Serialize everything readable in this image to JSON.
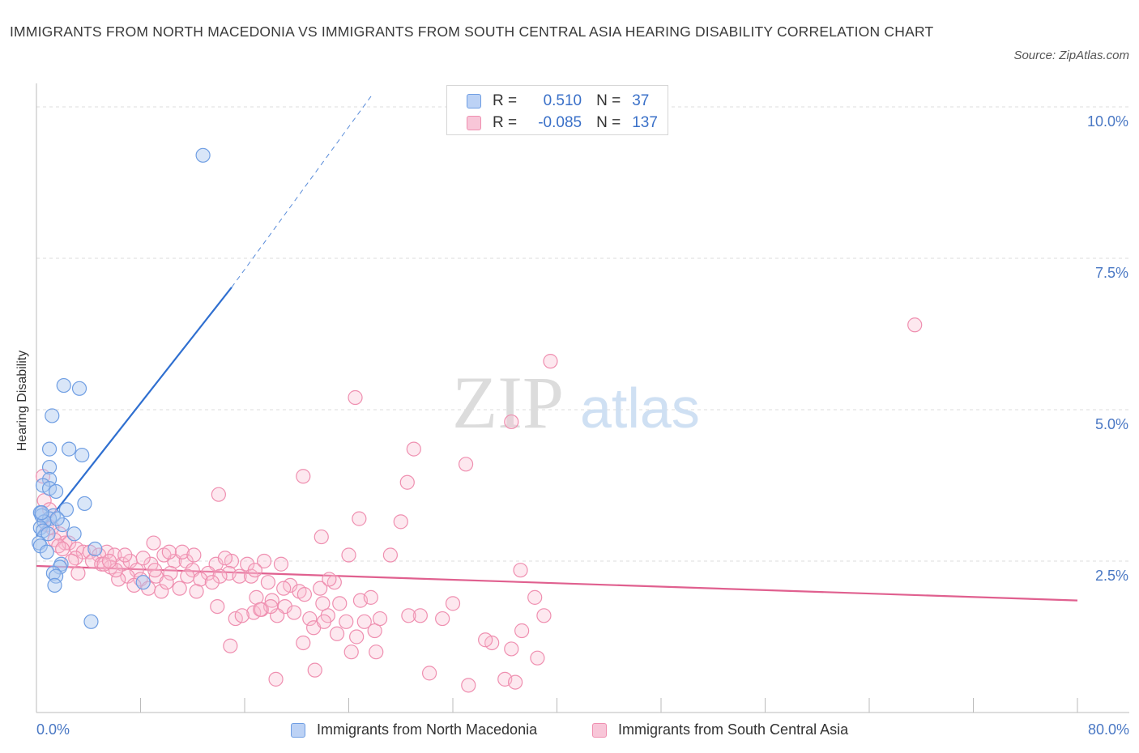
{
  "title": "IMMIGRANTS FROM NORTH MACEDONIA VS IMMIGRANTS FROM SOUTH CENTRAL ASIA HEARING DISABILITY CORRELATION CHART",
  "source": "Source: ZipAtlas.com",
  "watermark": {
    "zip": "ZIP",
    "atlas": "atlas"
  },
  "stats": {
    "blue": {
      "r_label": "R =",
      "r": "0.510",
      "n_label": "N =",
      "n": "37"
    },
    "pink": {
      "r_label": "R =",
      "r": "-0.085",
      "n_label": "N =",
      "n": "137"
    }
  },
  "chart_data": {
    "type": "scatter",
    "xlabel": "",
    "ylabel": "Hearing Disability",
    "xlim": [
      0,
      80
    ],
    "ylim": [
      0,
      10.2
    ],
    "x_tick_labels": [
      "0.0%",
      "80.0%"
    ],
    "y_tick_labels": [
      "2.5%",
      "5.0%",
      "7.5%",
      "10.0%"
    ],
    "y_ticks": [
      2.5,
      5.0,
      7.5,
      10.0
    ],
    "grid": true,
    "colors": {
      "blue": "#6f9ee3",
      "blue_line": "#2f6fd0",
      "pink": "#ef8fb0",
      "pink_line": "#e0608f",
      "axis_text": "#4a78c4"
    },
    "series": [
      {
        "name": "Immigrants from North Macedonia",
        "color": "blue",
        "points": [
          [
            12.8,
            9.2
          ],
          [
            2.1,
            5.4
          ],
          [
            3.3,
            5.35
          ],
          [
            1.2,
            4.9
          ],
          [
            1.0,
            4.35
          ],
          [
            2.5,
            4.35
          ],
          [
            3.5,
            4.25
          ],
          [
            1.0,
            4.05
          ],
          [
            1.0,
            3.85
          ],
          [
            0.5,
            3.75
          ],
          [
            1.0,
            3.7
          ],
          [
            1.5,
            3.65
          ],
          [
            3.7,
            3.45
          ],
          [
            0.3,
            3.3
          ],
          [
            2.3,
            3.35
          ],
          [
            0.4,
            3.25
          ],
          [
            1.3,
            3.25
          ],
          [
            1.0,
            3.2
          ],
          [
            0.6,
            3.15
          ],
          [
            2.0,
            3.1
          ],
          [
            0.3,
            3.05
          ],
          [
            0.5,
            3.0
          ],
          [
            2.9,
            2.95
          ],
          [
            0.2,
            2.8
          ],
          [
            0.3,
            2.75
          ],
          [
            4.5,
            2.7
          ],
          [
            0.8,
            2.65
          ],
          [
            1.9,
            2.45
          ],
          [
            1.8,
            2.4
          ],
          [
            1.3,
            2.3
          ],
          [
            1.5,
            2.25
          ],
          [
            8.2,
            2.15
          ],
          [
            1.4,
            2.1
          ],
          [
            4.2,
            1.5
          ],
          [
            0.4,
            3.3
          ],
          [
            1.6,
            3.2
          ],
          [
            0.9,
            2.95
          ]
        ]
      },
      {
        "name": "Immigrants from South Central Asia",
        "color": "pink",
        "points": [
          [
            67.5,
            6.4
          ],
          [
            39.5,
            5.8
          ],
          [
            24.5,
            5.2
          ],
          [
            36.5,
            4.8
          ],
          [
            29.0,
            4.35
          ],
          [
            33.0,
            4.1
          ],
          [
            20.5,
            3.9
          ],
          [
            28.5,
            3.8
          ],
          [
            14.0,
            3.6
          ],
          [
            24.8,
            3.2
          ],
          [
            28.0,
            3.15
          ],
          [
            21.9,
            2.9
          ],
          [
            0.5,
            3.9
          ],
          [
            0.6,
            3.5
          ],
          [
            1.0,
            3.35
          ],
          [
            0.8,
            3.1
          ],
          [
            1.2,
            3.05
          ],
          [
            1.8,
            2.95
          ],
          [
            1.4,
            2.85
          ],
          [
            2.2,
            2.8
          ],
          [
            2.5,
            2.8
          ],
          [
            1.7,
            2.75
          ],
          [
            3.1,
            2.7
          ],
          [
            2.0,
            2.7
          ],
          [
            3.6,
            2.65
          ],
          [
            4.1,
            2.65
          ],
          [
            5.4,
            2.65
          ],
          [
            6.0,
            2.6
          ],
          [
            4.8,
            2.6
          ],
          [
            3.0,
            2.55
          ],
          [
            4.3,
            2.5
          ],
          [
            2.7,
            2.5
          ],
          [
            5.0,
            2.45
          ],
          [
            6.6,
            2.45
          ],
          [
            7.2,
            2.5
          ],
          [
            5.7,
            2.4
          ],
          [
            7.7,
            2.35
          ],
          [
            8.8,
            2.45
          ],
          [
            8.2,
            2.55
          ],
          [
            10.6,
            2.5
          ],
          [
            11.5,
            2.5
          ],
          [
            9.8,
            2.6
          ],
          [
            11.2,
            2.65
          ],
          [
            12.0,
            2.35
          ],
          [
            13.8,
            2.45
          ],
          [
            15.0,
            2.5
          ],
          [
            13.2,
            2.3
          ],
          [
            12.6,
            2.2
          ],
          [
            10.3,
            2.3
          ],
          [
            9.2,
            2.25
          ],
          [
            8.0,
            2.2
          ],
          [
            7.0,
            2.25
          ],
          [
            6.3,
            2.2
          ],
          [
            8.6,
            2.05
          ],
          [
            9.6,
            2.0
          ],
          [
            11.0,
            2.05
          ],
          [
            12.3,
            2.0
          ],
          [
            14.8,
            2.3
          ],
          [
            16.2,
            2.45
          ],
          [
            17.5,
            2.5
          ],
          [
            18.8,
            2.45
          ],
          [
            14.1,
            2.25
          ],
          [
            15.6,
            2.25
          ],
          [
            16.5,
            2.25
          ],
          [
            17.8,
            2.15
          ],
          [
            19.5,
            2.1
          ],
          [
            20.2,
            2.0
          ],
          [
            21.8,
            2.05
          ],
          [
            22.9,
            2.15
          ],
          [
            18.1,
            1.85
          ],
          [
            16.9,
            1.9
          ],
          [
            19.1,
            1.75
          ],
          [
            20.6,
            1.95
          ],
          [
            22.0,
            1.8
          ],
          [
            23.3,
            1.8
          ],
          [
            24.9,
            1.85
          ],
          [
            25.7,
            1.9
          ],
          [
            13.9,
            1.75
          ],
          [
            15.3,
            1.55
          ],
          [
            16.7,
            1.65
          ],
          [
            17.3,
            1.7
          ],
          [
            18.5,
            1.6
          ],
          [
            19.8,
            1.65
          ],
          [
            21.0,
            1.55
          ],
          [
            22.4,
            1.6
          ],
          [
            23.8,
            1.5
          ],
          [
            25.2,
            1.5
          ],
          [
            26.0,
            1.35
          ],
          [
            21.3,
            1.4
          ],
          [
            23.1,
            1.3
          ],
          [
            24.6,
            1.25
          ],
          [
            20.5,
            1.15
          ],
          [
            14.9,
            1.1
          ],
          [
            24.2,
            1.0
          ],
          [
            26.1,
            1.0
          ],
          [
            29.5,
            1.6
          ],
          [
            31.2,
            1.55
          ],
          [
            32.0,
            1.8
          ],
          [
            35.0,
            1.15
          ],
          [
            36.5,
            1.05
          ],
          [
            37.3,
            1.35
          ],
          [
            38.5,
            0.9
          ],
          [
            38.3,
            1.9
          ],
          [
            39.0,
            1.6
          ],
          [
            37.2,
            2.35
          ],
          [
            36.0,
            0.55
          ],
          [
            36.8,
            0.5
          ],
          [
            30.2,
            0.65
          ],
          [
            33.2,
            0.45
          ],
          [
            21.4,
            0.7
          ],
          [
            18.4,
            0.55
          ],
          [
            24.0,
            2.6
          ],
          [
            27.2,
            2.6
          ],
          [
            9.0,
            2.8
          ],
          [
            3.2,
            2.3
          ],
          [
            5.2,
            2.45
          ],
          [
            6.8,
            2.6
          ],
          [
            10.2,
            2.65
          ],
          [
            12.1,
            2.6
          ],
          [
            14.5,
            2.55
          ],
          [
            16.8,
            2.35
          ],
          [
            19.0,
            2.05
          ],
          [
            22.5,
            2.2
          ],
          [
            11.6,
            2.25
          ],
          [
            7.5,
            2.1
          ],
          [
            10.0,
            2.15
          ],
          [
            13.5,
            2.15
          ],
          [
            9.1,
            2.35
          ],
          [
            6.1,
            2.35
          ],
          [
            15.8,
            1.6
          ],
          [
            18.0,
            1.75
          ],
          [
            26.4,
            1.55
          ],
          [
            28.6,
            1.6
          ],
          [
            34.5,
            1.2
          ],
          [
            22.1,
            1.5
          ],
          [
            17.2,
            1.7
          ],
          [
            5.6,
            2.5
          ]
        ]
      }
    ],
    "trend_lines": [
      {
        "series": "Immigrants from North Macedonia",
        "color": "blue",
        "solid": [
          [
            0.0,
            2.92
          ],
          [
            15.0,
            7.02
          ]
        ],
        "dashed": [
          [
            15.0,
            7.02
          ],
          [
            25.8,
            10.2
          ]
        ]
      },
      {
        "series": "Immigrants from South Central Asia",
        "color": "pink",
        "solid": [
          [
            0.0,
            2.42
          ],
          [
            80.0,
            1.85
          ]
        ]
      }
    ]
  }
}
